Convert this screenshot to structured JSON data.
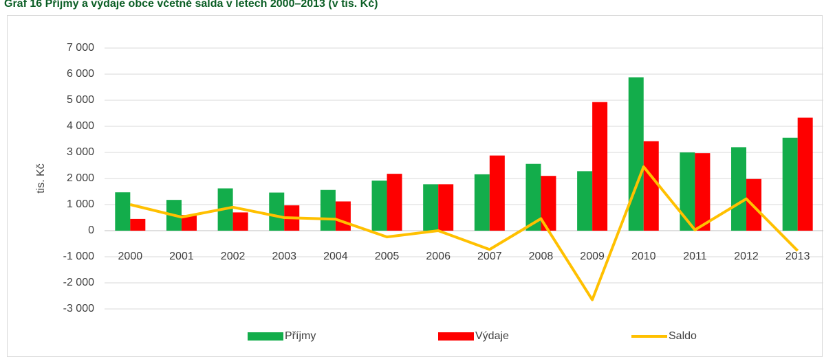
{
  "chart_data": {
    "type": "bar",
    "title": "Graf 16 Příjmy a výdaje obce včetně salda v letech 2000–2013 (v tis. Kč)",
    "y_label": "tis. Kč",
    "categories": [
      "2000",
      "2001",
      "2002",
      "2003",
      "2004",
      "2005",
      "2006",
      "2007",
      "2008",
      "2009",
      "2010",
      "2011",
      "2012",
      "2013"
    ],
    "series": [
      {
        "name": "Příjmy",
        "type": "bar",
        "color": "#13ad4b",
        "values": [
          1470,
          1180,
          1620,
          1460,
          1560,
          1920,
          1780,
          2160,
          2560,
          2280,
          5880,
          3000,
          3200,
          3560
        ]
      },
      {
        "name": "Výdaje",
        "type": "bar",
        "color": "#fe0000",
        "values": [
          450,
          600,
          700,
          970,
          1120,
          2180,
          1780,
          2880,
          2100,
          4930,
          3430,
          2970,
          1980,
          4330
        ]
      },
      {
        "name": "Saldo",
        "type": "line",
        "color": "#ffc000",
        "values": [
          1000,
          520,
          900,
          500,
          440,
          -240,
          0,
          -720,
          460,
          -2650,
          2450,
          30,
          1220,
          -770
        ]
      }
    ],
    "ylim": [
      -3000,
      7000
    ],
    "yticks": [
      {
        "value": -3000,
        "label": "-3 000"
      },
      {
        "value": -2000,
        "label": "-2 000"
      },
      {
        "value": -1000,
        "label": "-1 000"
      },
      0,
      {
        "value": 1000,
        "label": "1 000"
      },
      {
        "value": 2000,
        "label": "2 000"
      },
      {
        "value": 3000,
        "label": "3 000"
      },
      {
        "value": 4000,
        "label": "4 000"
      },
      {
        "value": 5000,
        "label": "5 000"
      },
      {
        "value": 6000,
        "label": "6 000"
      },
      {
        "value": 7000,
        "label": "7 000"
      }
    ],
    "grid": true
  }
}
